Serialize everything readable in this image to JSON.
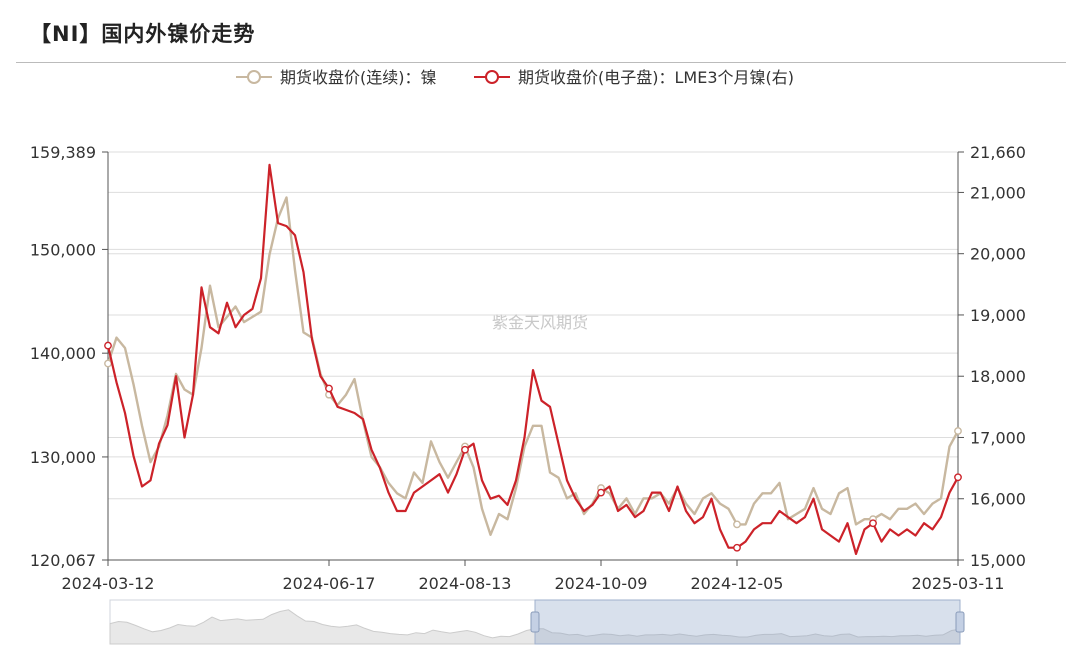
{
  "title": "【NI】国内外镍价走势",
  "watermark": "紫金天风期货",
  "chart_data": {
    "type": "line",
    "x_tick_labels": [
      "2024-03-12",
      "2024-06-17",
      "2024-08-13",
      "2024-10-09",
      "2024-12-05",
      "2025-03-11"
    ],
    "left_axis": {
      "min": 120067,
      "max": 159389,
      "tick_labels": [
        "159,389",
        "150,000",
        "140,000",
        "130,000",
        "120,067"
      ],
      "tick_values": [
        159389,
        150000,
        140000,
        130000,
        120067
      ]
    },
    "right_axis": {
      "min": 15000,
      "max": 21660,
      "tick_labels": [
        "21,660",
        "21,000",
        "20,000",
        "19,000",
        "18,000",
        "17,000",
        "16,000",
        "15,000"
      ],
      "tick_values": [
        21660,
        21000,
        20000,
        19000,
        18000,
        17000,
        16000,
        15000
      ]
    },
    "legend_position": "top-center",
    "grid": true,
    "series": [
      {
        "name": "期货收盘价(连续)：镍",
        "axis": "left",
        "color": "#c8b8a0",
        "x": [
          0,
          1,
          2,
          3,
          4,
          5,
          6,
          7,
          8,
          9,
          10,
          11,
          12,
          13,
          14,
          15,
          16,
          17,
          18,
          19,
          20,
          21,
          22,
          23,
          24,
          25,
          26,
          27,
          28,
          29,
          30,
          31,
          32,
          33,
          34,
          35,
          36,
          37,
          38,
          39,
          40,
          41,
          42,
          43,
          44,
          45,
          46,
          47,
          48,
          49,
          50,
          51,
          52,
          53,
          54,
          55,
          56,
          57,
          58,
          59,
          60,
          61,
          62,
          63,
          64,
          65,
          66,
          67,
          68,
          69,
          70,
          71,
          72,
          73,
          74,
          75,
          76,
          77,
          78,
          79,
          80,
          81,
          82,
          83,
          84,
          85,
          86,
          87,
          88,
          89,
          90,
          91,
          92,
          93,
          94,
          95,
          96,
          97,
          98,
          99,
          100
        ],
        "values": [
          139000,
          141500,
          140500,
          137000,
          133000,
          129500,
          131000,
          134000,
          138000,
          136500,
          136000,
          140500,
          146500,
          142500,
          143500,
          144500,
          143000,
          143500,
          144000,
          149500,
          153000,
          155000,
          148000,
          142000,
          141500,
          138000,
          136000,
          135000,
          136000,
          137500,
          133500,
          130000,
          129000,
          127500,
          126500,
          126000,
          128500,
          127500,
          131500,
          129500,
          128000,
          129500,
          131000,
          129000,
          125000,
          122500,
          124500,
          124000,
          127000,
          131000,
          133000,
          133000,
          128500,
          128000,
          126000,
          126500,
          124500,
          125500,
          127000,
          126500,
          125000,
          126000,
          124500,
          126000,
          126000,
          126500,
          125500,
          127000,
          125500,
          124500,
          126000,
          126500,
          125500,
          125000,
          123500,
          123500,
          125500,
          126500,
          126500,
          127500,
          124000,
          124500,
          125000,
          127000,
          125000,
          124500,
          126500,
          127000,
          123500,
          124000,
          124000,
          124500,
          124000,
          125000,
          125000,
          125500,
          124500,
          125500,
          126000,
          131000,
          132500
        ]
      },
      {
        "name": "期货收盘价(电子盘)：LME3个月镍(右)",
        "axis": "right",
        "color": "#cc2229",
        "x": [
          0,
          1,
          2,
          3,
          4,
          5,
          6,
          7,
          8,
          9,
          10,
          11,
          12,
          13,
          14,
          15,
          16,
          17,
          18,
          19,
          20,
          21,
          22,
          23,
          24,
          25,
          26,
          27,
          28,
          29,
          30,
          31,
          32,
          33,
          34,
          35,
          36,
          37,
          38,
          39,
          40,
          41,
          42,
          43,
          44,
          45,
          46,
          47,
          48,
          49,
          50,
          51,
          52,
          53,
          54,
          55,
          56,
          57,
          58,
          59,
          60,
          61,
          62,
          63,
          64,
          65,
          66,
          67,
          68,
          69,
          70,
          71,
          72,
          73,
          74,
          75,
          76,
          77,
          78,
          79,
          80,
          81,
          82,
          83,
          84,
          85,
          86,
          87,
          88,
          89,
          90,
          91,
          92,
          93,
          94,
          95,
          96,
          97,
          98,
          99,
          100
        ],
        "values": [
          18500,
          17900,
          17400,
          16700,
          16200,
          16300,
          16900,
          17200,
          18000,
          17000,
          17700,
          19450,
          18800,
          18700,
          19200,
          18800,
          19000,
          19100,
          19600,
          21450,
          20500,
          20450,
          20300,
          19700,
          18600,
          18000,
          17800,
          17500,
          17450,
          17400,
          17300,
          16800,
          16500,
          16100,
          15800,
          15800,
          16100,
          16200,
          16300,
          16400,
          16100,
          16400,
          16800,
          16900,
          16300,
          16000,
          16050,
          15900,
          16300,
          17000,
          18100,
          17600,
          17500,
          16900,
          16300,
          16000,
          15800,
          15900,
          16100,
          16200,
          15800,
          15900,
          15700,
          15800,
          16100,
          16100,
          15800,
          16200,
          15800,
          15600,
          15700,
          16000,
          15500,
          15200,
          15200,
          15300,
          15500,
          15600,
          15600,
          15800,
          15700,
          15600,
          15700,
          16000,
          15500,
          15400,
          15300,
          15600,
          15100,
          15500,
          15600,
          15300,
          15500,
          15400,
          15500,
          15400,
          15600,
          15500,
          15700,
          16100,
          16350
        ]
      }
    ]
  }
}
